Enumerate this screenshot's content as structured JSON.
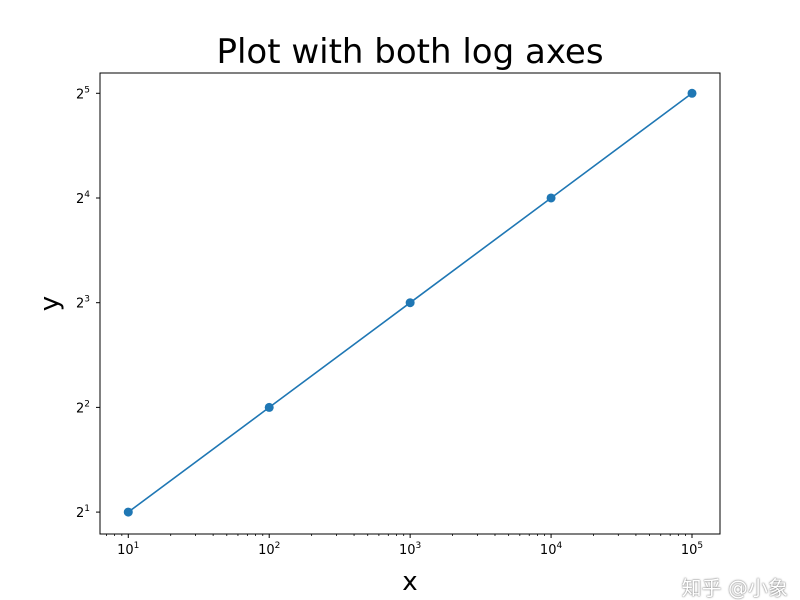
{
  "chart_data": {
    "type": "line",
    "title": "Plot with both log axes",
    "xlabel": "x",
    "ylabel": "y",
    "xscale": "log10",
    "yscale": "log2",
    "x": [
      10,
      100,
      1000,
      10000,
      100000
    ],
    "y": [
      2,
      4,
      8,
      16,
      32
    ],
    "xlim": [
      6.3,
      158000
    ],
    "ylim": [
      1.73,
      36.6
    ],
    "xticks": [
      {
        "value": 10,
        "base": "10",
        "exp": "1"
      },
      {
        "value": 100,
        "base": "10",
        "exp": "2"
      },
      {
        "value": 1000,
        "base": "10",
        "exp": "3"
      },
      {
        "value": 10000,
        "base": "10",
        "exp": "4"
      },
      {
        "value": 100000,
        "base": "10",
        "exp": "5"
      }
    ],
    "yticks": [
      {
        "value": 2,
        "base": "2",
        "exp": "1"
      },
      {
        "value": 4,
        "base": "2",
        "exp": "2"
      },
      {
        "value": 8,
        "base": "2",
        "exp": "3"
      },
      {
        "value": 16,
        "base": "2",
        "exp": "4"
      },
      {
        "value": 32,
        "base": "2",
        "exp": "5"
      }
    ],
    "marker": "circle",
    "grid": false,
    "color": "#1f77b4"
  },
  "watermark": "知乎 @小象"
}
